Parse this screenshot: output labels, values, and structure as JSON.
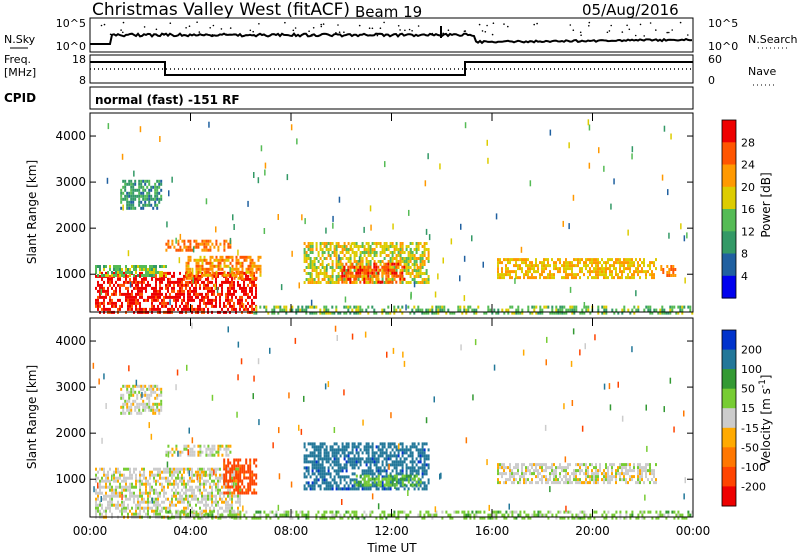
{
  "header": {
    "station": "Christmas Valley West (fitACF)",
    "beam": "Beam 19",
    "date": "05/Aug/2016"
  },
  "status_panels": {
    "nsky_label": "N.Sky",
    "nsky_ticks": [
      "10^5",
      "10^0"
    ],
    "nsearch_label": "N.Search",
    "nsearch_ticks": [
      "10^5",
      "10^0"
    ],
    "freq_label": [
      "Freq.",
      "[MHz]"
    ],
    "freq_ticks": [
      "18",
      "8"
    ],
    "nave_label": "Nave",
    "nave_ticks": [
      "60",
      "0"
    ],
    "cpid_label": "CPID",
    "cpid_text": "normal (fast) -151 RF"
  },
  "chart_data": [
    {
      "type": "heatmap",
      "panel": "power",
      "ylabel": "Slant Range [km]",
      "y_ticks": [
        "1000",
        "2000",
        "3000",
        "4000"
      ],
      "ylim": [
        180,
        4500
      ],
      "x_ticks": [
        "00:00",
        "04:00",
        "08:00",
        "12:00",
        "16:00",
        "20:00",
        "00:00"
      ],
      "xlim": [
        "00:00",
        "24:00"
      ],
      "colorbar": {
        "label": "Power [dB]",
        "ticks": [
          "28",
          "24",
          "20",
          "16",
          "12",
          "8",
          "4"
        ],
        "range": [
          0,
          32
        ],
        "colors": [
          "#0000ee",
          "#2060a0",
          "#339966",
          "#55bb55",
          "#ddcc00",
          "#ff9900",
          "#ff5500",
          "#ee0000"
        ]
      },
      "regions": [
        {
          "t": [
            0.2,
            6.6
          ],
          "r": [
            180,
            1050
          ],
          "value": 30
        },
        {
          "t": [
            0.2,
            3.0
          ],
          "r": [
            950,
            1200
          ],
          "value": 14
        },
        {
          "t": [
            3.8,
            6.8
          ],
          "r": [
            900,
            1400
          ],
          "value": 22
        },
        {
          "t": [
            3.0,
            5.6
          ],
          "r": [
            1500,
            1750
          ],
          "value": 24
        },
        {
          "t": [
            1.2,
            2.8
          ],
          "r": [
            2400,
            3050
          ],
          "value": 10
        },
        {
          "t": [
            8.5,
            13.5
          ],
          "r": [
            800,
            1700
          ],
          "value": 18
        },
        {
          "t": [
            10.0,
            12.5
          ],
          "r": [
            850,
            1250
          ],
          "value": 26
        },
        {
          "t": [
            16.2,
            22.5
          ],
          "r": [
            900,
            1350
          ],
          "value": 20
        },
        {
          "t": [
            22.7,
            23.3
          ],
          "r": [
            950,
            1200
          ],
          "value": 24
        },
        {
          "t": [
            6.5,
            24.0
          ],
          "r": [
            180,
            320
          ],
          "value": 14
        }
      ]
    },
    {
      "type": "heatmap",
      "panel": "velocity",
      "ylabel": "Slant Range [km]",
      "y_ticks": [
        "1000",
        "2000",
        "3000",
        "4000"
      ],
      "ylim": [
        180,
        4500
      ],
      "x_ticks": [
        "00:00",
        "04:00",
        "08:00",
        "12:00",
        "16:00",
        "20:00",
        "00:00"
      ],
      "xlim": [
        "00:00",
        "24:00"
      ],
      "xlabel": "Time UT",
      "colorbar": {
        "label": "Velocity [m s^-1]",
        "ticks": [
          "200",
          "100",
          "50",
          "15",
          "-15",
          "-50",
          "-100",
          "-200"
        ],
        "range": [
          -250,
          250
        ],
        "colors": [
          "#0033cc",
          "#227799",
          "#339933",
          "#77cc33",
          "#cccccc",
          "#ffaa00",
          "#ff7700",
          "#ff4400",
          "#ee0000"
        ]
      },
      "regions": [
        {
          "t": [
            0.2,
            6.0
          ],
          "r": [
            180,
            1250
          ],
          "value": 0
        },
        {
          "t": [
            3.0,
            5.6
          ],
          "r": [
            1500,
            1750
          ],
          "value": 0
        },
        {
          "t": [
            5.3,
            6.6
          ],
          "r": [
            700,
            1450
          ],
          "value": -120
        },
        {
          "t": [
            8.5,
            13.5
          ],
          "r": [
            800,
            1800
          ],
          "value": 180
        },
        {
          "t": [
            10.5,
            13.2
          ],
          "r": [
            850,
            1100
          ],
          "value": 40
        },
        {
          "t": [
            16.2,
            22.5
          ],
          "r": [
            900,
            1350
          ],
          "value": 0
        },
        {
          "t": [
            1.2,
            2.8
          ],
          "r": [
            2400,
            3050
          ],
          "value": 0
        },
        {
          "t": [
            3.0,
            24.0
          ],
          "r": [
            180,
            320
          ],
          "value": 30
        }
      ]
    }
  ]
}
